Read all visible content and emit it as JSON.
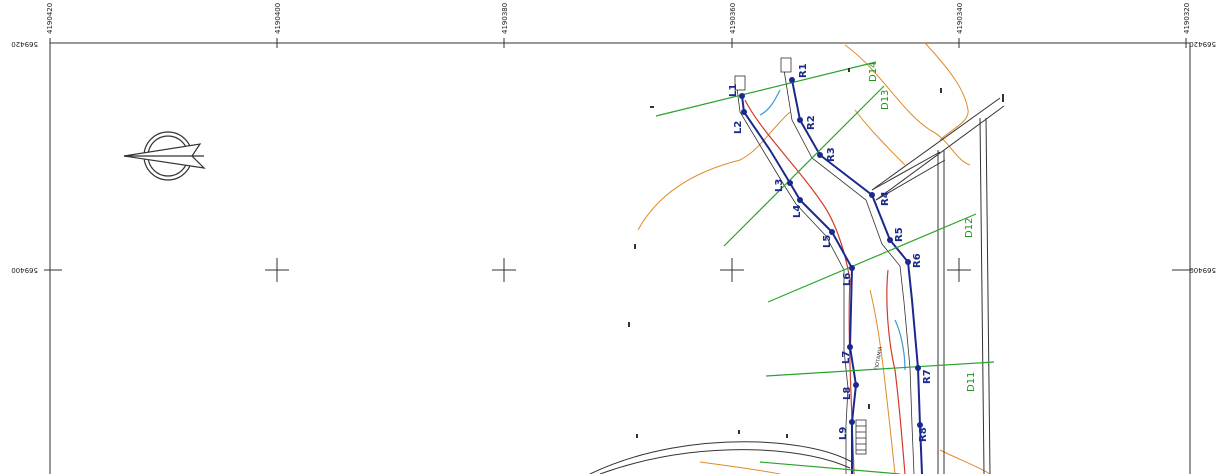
{
  "sheet": {
    "top_ticks": [
      "4190420",
      "4190400",
      "4190380",
      "4190360",
      "4190340",
      "4190320"
    ],
    "side_ticks": [
      "569420",
      "569400"
    ],
    "right_ticks": [
      "569420",
      "569400"
    ]
  },
  "survey": {
    "left_points": [
      "L1",
      "L2",
      "L3",
      "L4",
      "L5",
      "L6",
      "L7",
      "L8",
      "L9"
    ],
    "right_points": [
      "R1",
      "R2",
      "R3",
      "R4",
      "R5",
      "R6",
      "R7",
      "R8"
    ],
    "sections": [
      "D14",
      "D13",
      "D12",
      "D11"
    ],
    "stream_label": "ΠΟΤΑΜΙΑ"
  },
  "colors": {
    "route": "#1a2a8c",
    "section": "#2aa52a",
    "contour": "#e08a2a",
    "stream": "#d23a2a",
    "water": "#3a9ad2"
  }
}
